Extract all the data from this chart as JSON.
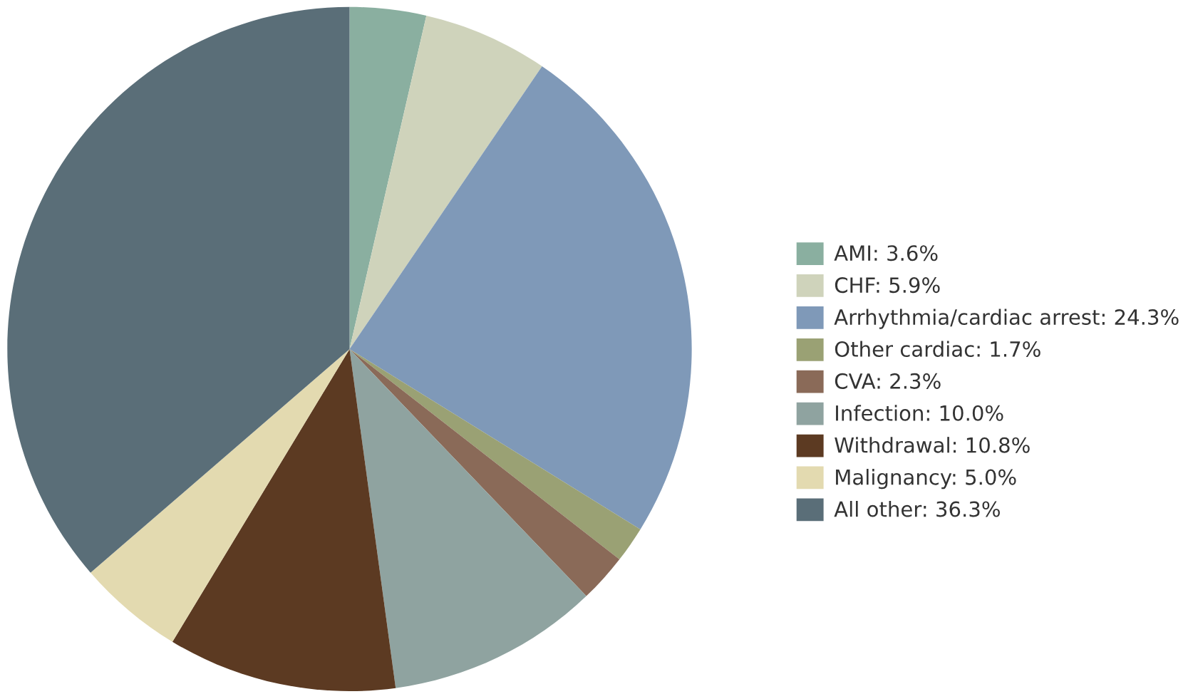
{
  "chart_data": {
    "type": "pie",
    "categories": [
      "AMI: 3.6%",
      "CHF: 5.9%",
      "Arrhythmia/cardiac arrest: 24.3%",
      "Other cardiac: 1.7%",
      "CVA: 2.3%",
      "Infection: 10.0%",
      "Withdrawal: 10.8%",
      "Malignancy: 5.0%",
      "All other: 36.3%"
    ],
    "values": [
      3.6,
      5.9,
      24.3,
      1.7,
      2.3,
      10.0,
      10.8,
      5.0,
      36.3
    ],
    "colors": [
      "#8aafa0",
      "#cfd3bb",
      "#7f99b8",
      "#9aa174",
      "#8a6a58",
      "#8fa3a0",
      "#5c3a22",
      "#e3dab0",
      "#5a6e78"
    ],
    "legend": "right"
  }
}
